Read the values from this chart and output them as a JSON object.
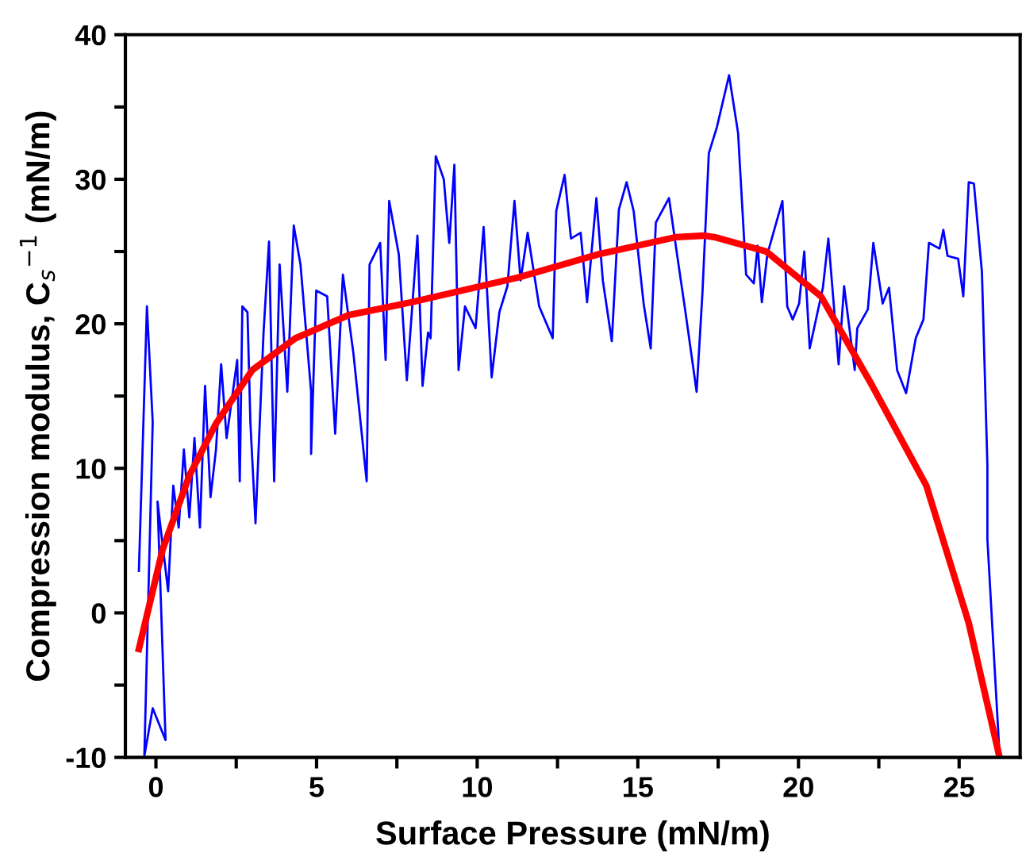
{
  "chart_data": {
    "type": "line",
    "xlabel": "Surface Pressure (mN/m)",
    "ylabel": "Compression modulus, C$_{s}$$^{−1}$ (mN/m)",
    "xlim": [
      -0.95,
      26.9
    ],
    "ylim": [
      -10,
      40
    ],
    "xticks": [
      0,
      {
        "value": 2.5,
        "label": null
      },
      5,
      {
        "value": 7.5,
        "label": null
      },
      10,
      {
        "value": 12.5,
        "label": null
      },
      15,
      {
        "value": 17.5,
        "label": null
      },
      20,
      {
        "value": 22.5,
        "label": null
      },
      25
    ],
    "yticks": [
      -10,
      {
        "value": -5,
        "label": null
      },
      0,
      {
        "value": 5,
        "label": null
      },
      10,
      {
        "value": 15,
        "label": null
      },
      20,
      {
        "value": 25,
        "label": null
      },
      30,
      {
        "value": 35,
        "label": null
      },
      40
    ],
    "grid": false,
    "legend": false,
    "marker": "none",
    "line_style": "solid",
    "series": [
      {
        "color": "#0000ff",
        "x": [
          -0.53,
          -0.28,
          -0.1,
          -0.36,
          -0.1,
          0.3,
          0.05,
          0.38,
          0.54,
          0.71,
          0.87,
          1.04,
          1.2,
          1.37,
          1.53,
          1.7,
          1.87,
          2.03,
          2.2,
          2.53,
          2.61,
          2.69,
          2.85,
          2.94,
          3.1,
          3.35,
          3.52,
          3.68,
          3.85,
          4.09,
          4.29,
          4.5,
          4.83,
          4.83,
          4.99,
          5.33,
          5.58,
          5.82,
          6.15,
          6.56,
          6.65,
          6.98,
          7.15,
          7.26,
          7.56,
          7.81,
          8.14,
          8.3,
          8.47,
          8.55,
          8.71,
          8.96,
          9.13,
          9.29,
          9.42,
          9.62,
          9.95,
          10.2,
          10.45,
          10.69,
          10.94,
          11.16,
          11.35,
          11.57,
          11.93,
          12.35,
          12.46,
          12.72,
          12.92,
          13.22,
          13.42,
          13.71,
          13.91,
          14.19,
          14.41,
          14.65,
          14.87,
          15.18,
          15.4,
          15.56,
          15.97,
          16.22,
          16.47,
          16.83,
          17.01,
          17.21,
          17.46,
          17.84,
          18.12,
          18.37,
          18.61,
          18.73,
          18.86,
          19.03,
          19.5,
          19.65,
          19.82,
          20.02,
          20.18,
          20.35,
          20.76,
          20.93,
          21.25,
          21.42,
          21.75,
          21.83,
          22.16,
          22.33,
          22.62,
          22.82,
          23.07,
          23.35,
          23.65,
          23.89,
          24.06,
          24.39,
          24.51,
          24.64,
          24.97,
          25.13,
          25.3,
          25.46,
          25.71,
          25.88,
          25.88,
          26.26
        ],
        "values": [
          2.9,
          21.2,
          13.2,
          -9.9,
          -6.6,
          -8.8,
          7.7,
          1.5,
          8.8,
          5.9,
          11.3,
          6.6,
          12.1,
          5.9,
          15.7,
          8.0,
          11.3,
          17.2,
          12.1,
          17.5,
          9.1,
          21.2,
          20.8,
          13.2,
          6.2,
          19.4,
          25.7,
          9.1,
          24.1,
          15.3,
          26.8,
          24.1,
          15.3,
          11.0,
          22.3,
          21.9,
          12.4,
          23.4,
          17.9,
          9.1,
          24.1,
          25.6,
          17.5,
          28.5,
          24.8,
          16.1,
          26.1,
          15.7,
          19.4,
          19.0,
          31.6,
          30.0,
          25.6,
          31.0,
          16.8,
          21.2,
          19.7,
          26.7,
          16.3,
          20.8,
          22.6,
          28.5,
          23.0,
          26.3,
          21.2,
          19.0,
          27.8,
          30.3,
          25.9,
          26.3,
          21.5,
          28.7,
          23.0,
          18.8,
          27.9,
          29.8,
          27.8,
          21.4,
          18.3,
          27.0,
          28.7,
          24.8,
          21.0,
          15.3,
          22.1,
          31.8,
          33.6,
          37.2,
          33.2,
          23.4,
          22.8,
          25.4,
          21.5,
          24.8,
          28.5,
          21.2,
          20.3,
          21.4,
          25.0,
          18.3,
          22.5,
          25.9,
          17.2,
          22.6,
          16.8,
          19.7,
          21.0,
          25.6,
          21.4,
          22.5,
          16.8,
          15.2,
          19.0,
          20.3,
          25.6,
          25.2,
          26.5,
          24.7,
          24.5,
          21.9,
          29.8,
          29.7,
          23.6,
          10.2,
          5.1,
          -9.9
        ]
      },
      {
        "color": "#ff0000",
        "x": [
          -0.53,
          0.21,
          1.04,
          1.87,
          3.0,
          4.34,
          6.0,
          7.97,
          11.27,
          13.75,
          16.2,
          17.05,
          17.38,
          19.0,
          20.7,
          22.3,
          23.98,
          25.3,
          26.25
        ],
        "values": [
          -2.5,
          4.4,
          9.5,
          13.1,
          16.8,
          19.0,
          20.6,
          21.5,
          23.2,
          24.8,
          26.0,
          26.1,
          26.0,
          25.0,
          21.9,
          15.7,
          8.8,
          -0.7,
          -9.9
        ]
      }
    ]
  }
}
